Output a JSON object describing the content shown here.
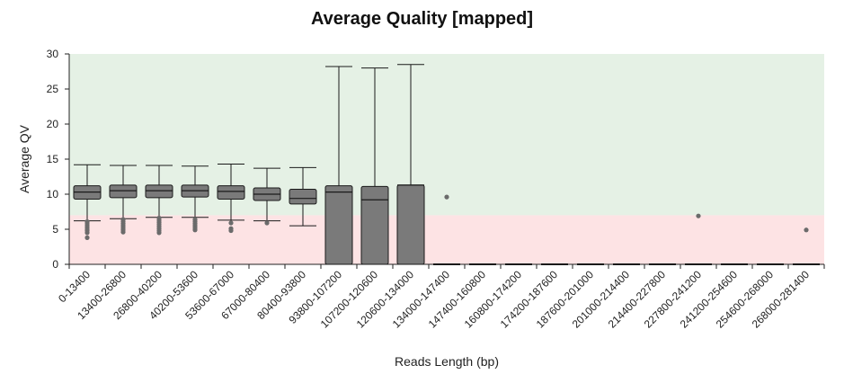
{
  "chart_data": {
    "type": "box",
    "title": "Average Quality [mapped]",
    "xlabel": "Reads Length (bp)",
    "ylabel": "Average QV",
    "ylim": [
      0,
      30
    ],
    "yticks": [
      0,
      5,
      10,
      15,
      20,
      25,
      30
    ],
    "threshold_bands": [
      {
        "from": 0,
        "to": 7,
        "color": "#fde3e4"
      },
      {
        "from": 7,
        "to": 30,
        "color": "#e5f1e5"
      }
    ],
    "categories": [
      "0-13400",
      "13400-26800",
      "26800-40200",
      "40200-53600",
      "53600-67000",
      "67000-80400",
      "80400-93800",
      "93800-107200",
      "107200-120600",
      "120600-134000",
      "134000-147400",
      "147400-160800",
      "160800-174200",
      "174200-187600",
      "187600-201000",
      "201000-214400",
      "214400-227800",
      "227800-241200",
      "241200-254600",
      "254600-268000",
      "268000-281400"
    ],
    "boxes": [
      {
        "whisker_low": 6.2,
        "q1": 9.3,
        "median": 10.3,
        "q3": 11.2,
        "whisker_high": 14.2,
        "outliers": [
          3.8,
          4.5,
          4.8,
          5.0,
          5.3,
          5.6,
          5.9,
          6.1
        ]
      },
      {
        "whisker_low": 6.5,
        "q1": 9.5,
        "median": 10.5,
        "q3": 11.3,
        "whisker_high": 14.1,
        "outliers": [
          4.6,
          4.9,
          5.2,
          5.5,
          5.8,
          6.1,
          6.4
        ]
      },
      {
        "whisker_low": 6.7,
        "q1": 9.5,
        "median": 10.5,
        "q3": 11.3,
        "whisker_high": 14.1,
        "outliers": [
          4.5,
          4.8,
          5.1,
          5.4,
          5.7,
          6.0,
          6.3,
          6.6
        ]
      },
      {
        "whisker_low": 6.7,
        "q1": 9.6,
        "median": 10.5,
        "q3": 11.3,
        "whisker_high": 14.0,
        "outliers": [
          4.9,
          5.2,
          5.5,
          5.8,
          6.1,
          6.4
        ]
      },
      {
        "whisker_low": 6.3,
        "q1": 9.3,
        "median": 10.4,
        "q3": 11.2,
        "whisker_high": 14.3,
        "outliers": [
          4.8,
          5.1,
          5.9
        ]
      },
      {
        "whisker_low": 6.2,
        "q1": 9.1,
        "median": 10.0,
        "q3": 10.9,
        "whisker_high": 13.7,
        "outliers": [
          5.9
        ]
      },
      {
        "whisker_low": 5.5,
        "q1": 8.6,
        "median": 9.4,
        "q3": 10.7,
        "whisker_high": 13.8,
        "outliers": []
      },
      {
        "whisker_low": 0,
        "q1": 0,
        "median": 10.3,
        "q3": 11.2,
        "whisker_high": 28.2,
        "outliers": []
      },
      {
        "whisker_low": 0,
        "q1": 0,
        "median": 9.2,
        "q3": 11.1,
        "whisker_high": 28.0,
        "outliers": []
      },
      {
        "whisker_low": 0,
        "q1": 0,
        "median": 11.3,
        "q3": 11.3,
        "whisker_high": 28.5,
        "outliers": []
      },
      {
        "whisker_low": 0,
        "q1": 0,
        "median": 0,
        "q3": 0,
        "whisker_high": 0,
        "outliers": [
          9.6
        ]
      },
      {
        "whisker_low": 0,
        "q1": 0,
        "median": 0,
        "q3": 0,
        "whisker_high": 0,
        "outliers": []
      },
      {
        "whisker_low": 0,
        "q1": 0,
        "median": 0,
        "q3": 0,
        "whisker_high": 0,
        "outliers": []
      },
      {
        "whisker_low": 0,
        "q1": 0,
        "median": 0,
        "q3": 0,
        "whisker_high": 0,
        "outliers": []
      },
      {
        "whisker_low": 0,
        "q1": 0,
        "median": 0,
        "q3": 0,
        "whisker_high": 0,
        "outliers": []
      },
      {
        "whisker_low": 0,
        "q1": 0,
        "median": 0,
        "q3": 0,
        "whisker_high": 0,
        "outliers": []
      },
      {
        "whisker_low": 0,
        "q1": 0,
        "median": 0,
        "q3": 0,
        "whisker_high": 0,
        "outliers": []
      },
      {
        "whisker_low": 0,
        "q1": 0,
        "median": 0,
        "q3": 0,
        "whisker_high": 0,
        "outliers": [
          6.9
        ]
      },
      {
        "whisker_low": 0,
        "q1": 0,
        "median": 0,
        "q3": 0,
        "whisker_high": 0,
        "outliers": []
      },
      {
        "whisker_low": 0,
        "q1": 0,
        "median": 0,
        "q3": 0,
        "whisker_high": 0,
        "outliers": []
      },
      {
        "whisker_low": 0,
        "q1": 0,
        "median": 0,
        "q3": 0,
        "whisker_high": 0,
        "outliers": [
          4.9
        ]
      }
    ],
    "box_color": "#7a7a7a",
    "line_color": "#1a1a1a",
    "outlier_color": "#6b6b6b",
    "grid": false
  }
}
